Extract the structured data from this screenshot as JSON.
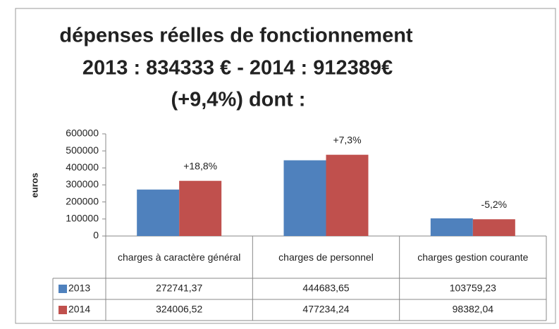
{
  "chart_data": {
    "type": "bar",
    "title": [
      "dépenses réelles de fonctionnement",
      "2013 : 834333 € - 2014 : 912389€",
      "(+9,4%)  dont :"
    ],
    "ylabel": "euros",
    "categories": [
      "charges à caractère général",
      "charges de personnel",
      "charges gestion courante"
    ],
    "series": [
      {
        "name": "2013",
        "color": "#4f81bd",
        "values": [
          272741.37,
          444683.65,
          103759.23
        ],
        "value_labels": [
          "272741,37",
          "444683,65",
          "103759,23"
        ]
      },
      {
        "name": "2014",
        "color": "#c0504d",
        "values": [
          324006.52,
          477234.24,
          98382.04
        ],
        "value_labels": [
          "324006,52",
          "477234,24",
          "98382,04"
        ]
      }
    ],
    "annotations": [
      "+18,8%",
      "+7,3%",
      "-5,2%"
    ],
    "ylim": [
      0,
      600000
    ],
    "yticks": [
      0,
      100000,
      200000,
      300000,
      400000,
      500000,
      600000
    ],
    "grid": false
  }
}
